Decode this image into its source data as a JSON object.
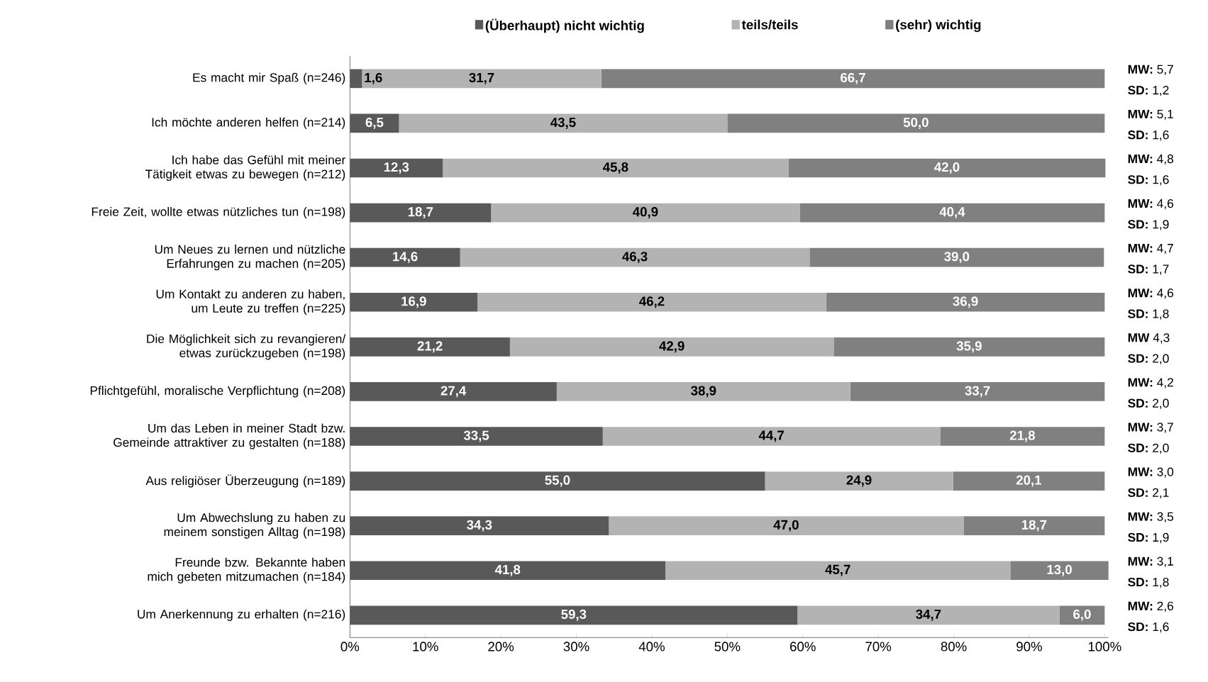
{
  "chart_data": {
    "type": "bar",
    "orientation": "horizontal",
    "stacked": true,
    "legend": "top",
    "categories": [
      "Es macht mir Spaß (n=246)",
      "Ich möchte anderen helfen (n=214)",
      "Ich habe das Gefühl mit meiner Tätigkeit etwas zu bewegen (n=212)",
      "Freie Zeit, wollte etwas nützliches tun (n=198)",
      "Um Neues zu lernen und nützliche Erfahrungen zu machen (n=205)",
      "Um Kontakt zu anderen zu haben, um Leute zu treffen (n=225)",
      "Die Möglichkeit sich zu revangieren/ etwas zurückzugeben (n=198)",
      "Pflichtgefühl, moralische Verpflichtung (n=208)",
      "Um das Leben in meiner Stadt bzw. Gemeinde attraktiver zu gestalten (n=188)",
      "Aus religiöser Überzeugung (n=189)",
      "Um Abwechslung zu haben zu meinem sonstigen Alltag (n=198)",
      "Freunde bzw. Bekannte haben mich gebeten mitzumachen (n=184)",
      "Um Anerkennung zu erhalten (n=216)"
    ],
    "series": [
      {
        "name": "(Überhaupt) nicht wichtig",
        "color": "#595959",
        "values": [
          1.6,
          6.5,
          12.3,
          18.7,
          14.6,
          16.9,
          21.2,
          27.4,
          33.5,
          55.0,
          34.3,
          41.8,
          59.3
        ],
        "value_labels": [
          "1,6",
          "6,5",
          "12,3",
          "18,7",
          "14,6",
          "16,9",
          "21,2",
          "27,4",
          "33,5",
          "55,0",
          "34,3",
          "41,8",
          "59,3"
        ]
      },
      {
        "name": "teils/teils",
        "color": "#b3b3b3",
        "values": [
          31.7,
          43.5,
          45.8,
          40.9,
          46.3,
          46.2,
          42.9,
          38.9,
          44.7,
          24.9,
          47.0,
          45.7,
          34.7
        ],
        "value_labels": [
          "31,7",
          "43,5",
          "45,8",
          "40,9",
          "46,3",
          "46,2",
          "42,9",
          "38,9",
          "44,7",
          "24,9",
          "47,0",
          "45,7",
          "34,7"
        ]
      },
      {
        "name": "(sehr) wichtig",
        "color": "#808080",
        "values": [
          66.7,
          50.0,
          42.0,
          40.4,
          39.0,
          36.9,
          35.9,
          33.7,
          21.8,
          20.1,
          18.7,
          13.0,
          6.0
        ],
        "value_labels": [
          "66,7",
          "50,0",
          "42,0",
          "40,4",
          "39,0",
          "36,9",
          "35,9",
          "33,7",
          "21,8",
          "20,1",
          "18,7",
          "13,0",
          "6,0"
        ]
      }
    ],
    "xlim": [
      0,
      100.5
    ],
    "xticks": [
      {
        "value": 0,
        "label": "0%"
      },
      {
        "value": 10,
        "label": "10%"
      },
      {
        "value": 20,
        "label": "20%"
      },
      {
        "value": 30,
        "label": "30%"
      },
      {
        "value": 40,
        "label": "40%"
      },
      {
        "value": 50,
        "label": "50%"
      },
      {
        "value": 60,
        "label": "60%"
      },
      {
        "value": 70,
        "label": "70%"
      },
      {
        "value": 80,
        "label": "80%"
      },
      {
        "value": 90,
        "label": "90%"
      },
      {
        "value": 100,
        "label": "100%"
      }
    ],
    "annotations": [
      "**MW:** 5,7",
      "**SD:**  1,2",
      "**MW:** 5,1",
      "**SD:** 1,6",
      "**MW:** 4,8",
      "**SD:**  1,6",
      "**MW:** 4,6",
      "**SD:**  1,9",
      "**MW:** 4,7",
      "**SD:** 1,7",
      "**MW:** 4,6",
      "**SD:** 1,8",
      "**MW** 4,3",
      "**SD:** 2,0",
      "**MW:** 4,2",
      "**SD:** 2,0",
      "**MW:** 3,7",
      "**SD:** 2,0",
      "**MW:** 3,0",
      "**SD:** 2,1",
      "**MW:** 3,5",
      "**SD:** 1,9",
      "**MW:** 3,1",
      "**SD:** 1,8",
      "**MW:** 2,6",
      "**SD:**  1,6"
    ]
  }
}
